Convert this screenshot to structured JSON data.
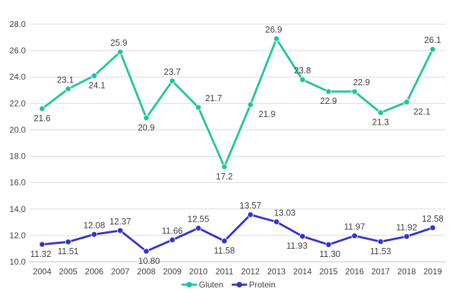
{
  "chart_data": {
    "type": "line",
    "title": "",
    "xlabel": "",
    "ylabel": "",
    "categories": [
      "2004",
      "2005",
      "2006",
      "2007",
      "2008",
      "2009",
      "2010",
      "2011",
      "2012",
      "2013",
      "2014",
      "2015",
      "2016",
      "2017",
      "2018",
      "2019"
    ],
    "ylim": [
      10.0,
      28.0
    ],
    "yticks": [
      "10.0",
      "12.0",
      "14.0",
      "16.0",
      "18.0",
      "20.0",
      "22.0",
      "24.0",
      "26.0",
      "28.0"
    ],
    "grid": true,
    "legend_position": "bottom",
    "series": [
      {
        "name": "Gluten",
        "color": "#1fc59a",
        "values": [
          21.6,
          23.1,
          24.1,
          25.9,
          20.9,
          23.7,
          21.7,
          17.2,
          21.9,
          26.9,
          23.8,
          22.9,
          22.9,
          21.3,
          22.1,
          26.1
        ],
        "labels": [
          "21.6",
          "23.1",
          "24.1",
          "25.9",
          "20.9",
          "23.7",
          "21.7",
          "17.2",
          "21.9",
          "26.9",
          "23.8",
          "22.9",
          "22.9",
          "21.3",
          "22.1",
          "26.1"
        ]
      },
      {
        "name": "Protein",
        "color": "#3333cc",
        "values": [
          11.32,
          11.51,
          12.08,
          12.37,
          10.8,
          11.66,
          12.55,
          11.58,
          13.57,
          13.03,
          11.93,
          11.3,
          11.97,
          11.53,
          11.92,
          12.58
        ],
        "labels": [
          "11.32",
          "11.51",
          "12.08",
          "12.37",
          "10.80",
          "11.66",
          "12.55",
          "11.58",
          "13.57",
          "13.03",
          "11.93",
          "11.30",
          "11.97",
          "11.53",
          "11.92",
          "12.58"
        ]
      }
    ]
  }
}
